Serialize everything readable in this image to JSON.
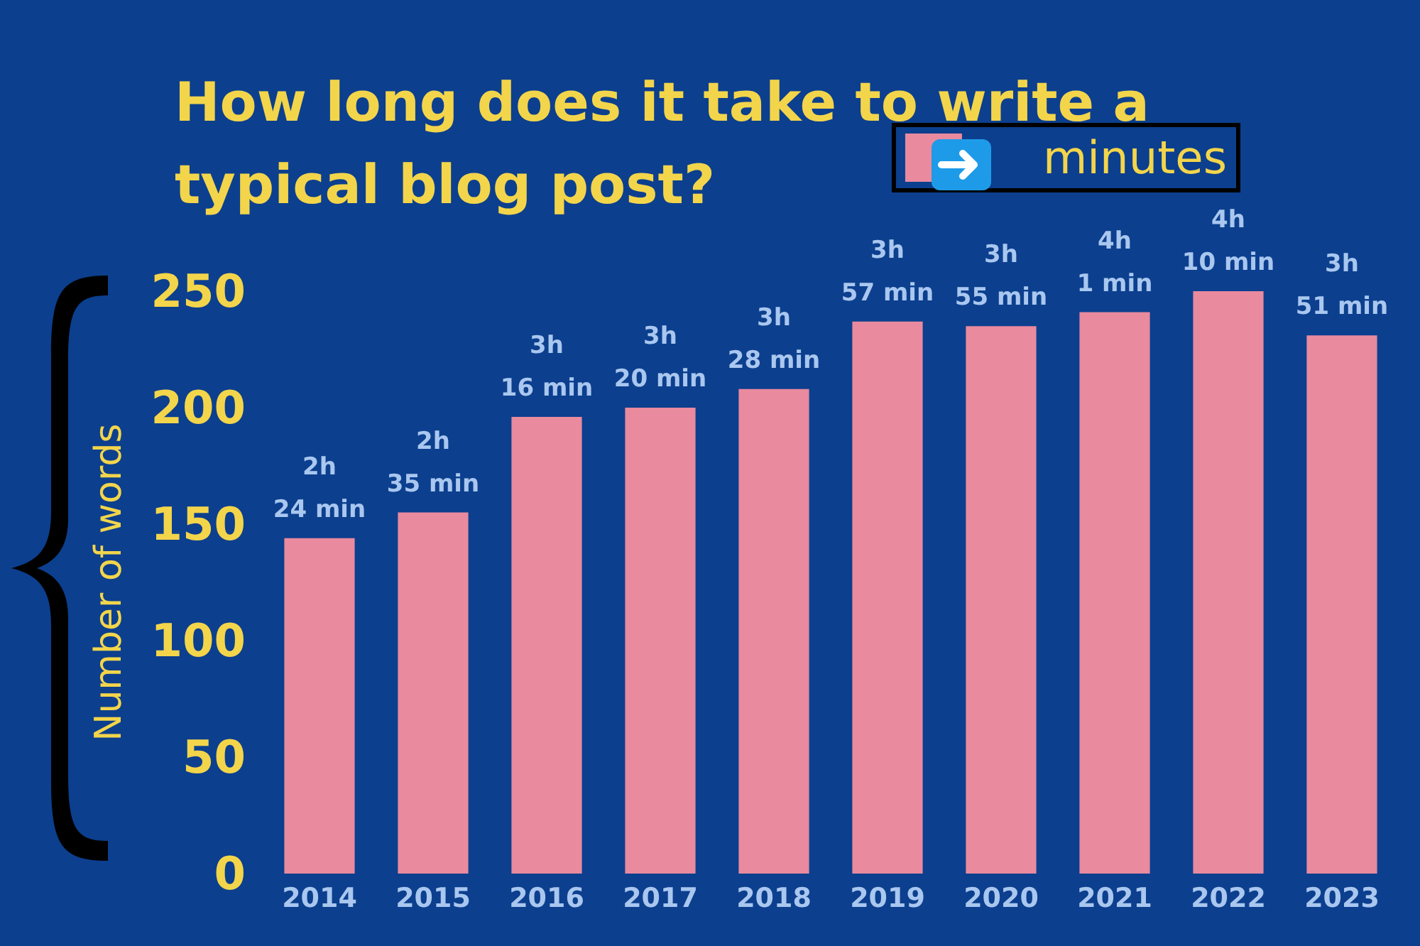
{
  "chart_data": {
    "type": "bar",
    "title": "How long does it take to write a typical blog post?",
    "ylabel": "Number of words",
    "categories": [
      "2014",
      "2015",
      "2016",
      "2017",
      "2018",
      "2019",
      "2020",
      "2021",
      "2022",
      "2023"
    ],
    "series": [
      {
        "name": "minutes",
        "color": "#e98a9e",
        "values": [
          144,
          155,
          196,
          200,
          208,
          237,
          235,
          241,
          250,
          231
        ]
      }
    ],
    "annotations": [
      {
        "text": "2h 24 min",
        "x": "2014",
        "y": 144
      },
      {
        "text": "2h 35 min",
        "x": "2015",
        "y": 155
      },
      {
        "text": "3h 16 min",
        "x": "2016",
        "y": 196
      },
      {
        "text": "3h 20 min",
        "x": "2017",
        "y": 200
      },
      {
        "text": "3h 28 min",
        "x": "2018",
        "y": 208
      },
      {
        "text": "3h 57 min",
        "x": "2019",
        "y": 237
      },
      {
        "text": "3h 55 min",
        "x": "2020",
        "y": 235
      },
      {
        "text": "4h 1 min",
        "x": "2021",
        "y": 241
      },
      {
        "text": "4h 10 min",
        "x": "2022",
        "y": 250
      },
      {
        "text": "3h 51 min",
        "x": "2023",
        "y": 231
      }
    ],
    "ylim": [
      0,
      250
    ],
    "yticks": [
      0,
      50,
      100,
      150,
      200,
      250
    ],
    "legend": "top right"
  }
}
